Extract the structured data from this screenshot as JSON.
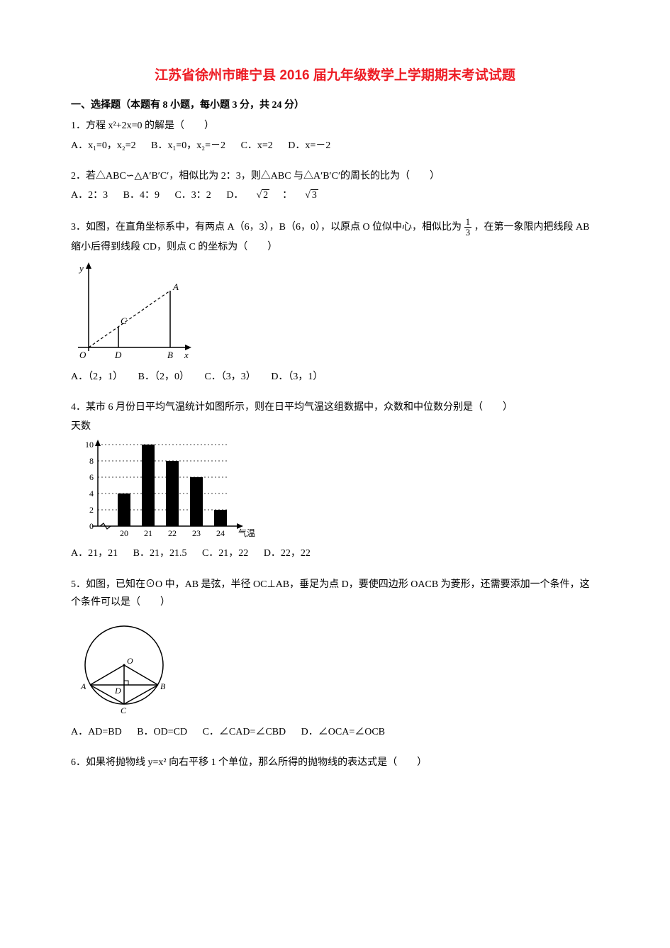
{
  "title": "江苏省徐州市睢宁县 2016 届九年级数学上学期期末考试试题",
  "section": "一、选择题（本题有 8 小题，每小题 3 分，共 24 分）",
  "q1": {
    "stem": "1．方程 x²+2x=0 的解是（　　）",
    "a": "A．x₁=0，x₂=2",
    "b": "B．x₁=0，x₂=－2",
    "c": "C．x=2",
    "d": "D．x=－2"
  },
  "q2": {
    "stem": "2．若△ABC∽△A′B′C′，相似比为 2：3，则△ABC 与△A′B′C′的周长的比为（　　）",
    "a": "A．2：3",
    "b": "B．4：9",
    "c": "C．3：2",
    "dpre": "D．",
    "dcolon": "："
  },
  "q3": {
    "stem1": "3．如图，在直角坐标系中，有两点 A（6，3），B（6，0），以原点 O 位似中心，相似比为",
    "stem2": "，在第一象限内把线段 AB 缩小后得到线段 CD，则点 C 的坐标为（　　）",
    "frac_n": "1",
    "frac_d": "3",
    "opts": {
      "a": "A．（2，1）",
      "b": "B．（2，0）",
      "c": "C．（3，3）",
      "d": "D．（3，1）"
    },
    "chart": {
      "type": "coordinate-diagram",
      "y_label": "y",
      "x_label": "x",
      "points": {
        "O": "O",
        "D": "D",
        "B": "B",
        "C": "C",
        "A": "A"
      },
      "stroke": "#000000",
      "dash_segment": "CA"
    }
  },
  "q4": {
    "stem": "4．某市 6 月份日平均气温统计如图所示，则在日平均气温这组数据中，众数和中位数分别是（　　）",
    "opts": {
      "a": "A．21，21",
      "b": "B．21，21.5",
      "c": "C．21，22",
      "d": "D．22，22"
    },
    "chart": {
      "type": "bar",
      "y_label": "天数",
      "x_label": "气温/℃",
      "x_cats": [
        "20",
        "21",
        "22",
        "23",
        "24"
      ],
      "y_ticks": [
        0,
        2,
        4,
        6,
        8,
        10
      ],
      "values": [
        4,
        10,
        8,
        6,
        2
      ],
      "ylim": [
        0,
        10
      ],
      "bar_color": "#000000",
      "axis_color": "#000000",
      "bg": "#ffffff",
      "tick_fontsize": 12
    }
  },
  "q5": {
    "stem": "5．如图，已知在⊙O 中，AB 是弦，半径 OC⊥AB，垂足为点 D，要使四边形 OACB 为菱形，还需要添加一个条件，这个条件可以是（　　）",
    "opts": {
      "a": "A．AD=BD",
      "b": "B．OD=CD",
      "c": "C．∠CAD=∠CBD",
      "d": "D．∠OCA=∠OCB"
    },
    "diagram": {
      "type": "circle-chord",
      "labels": {
        "O": "O",
        "A": "A",
        "B": "B",
        "C": "C",
        "D": "D"
      },
      "stroke": "#000000"
    }
  },
  "q6": {
    "stem": "6．如果将抛物线 y=x² 向右平移 1 个单位，那么所得的抛物线的表达式是（　　）"
  },
  "colors": {
    "title": "#ed1c24",
    "text": "#000000",
    "bg": "#ffffff"
  }
}
